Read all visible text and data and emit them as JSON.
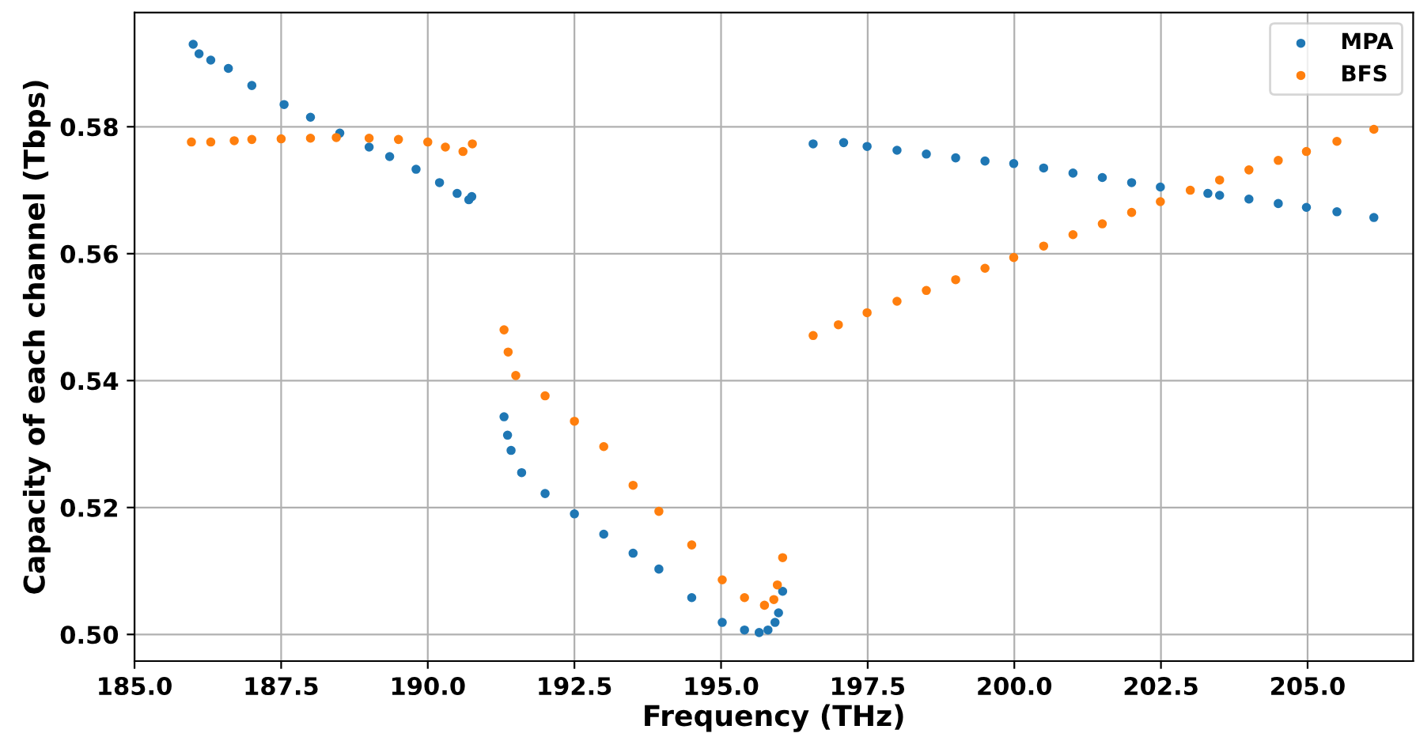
{
  "chart_data": {
    "type": "scatter",
    "xlabel": "Frequency (THz)",
    "ylabel": "Capacity of each channel (Tbps)",
    "xlim": [
      185,
      206.8
    ],
    "ylim": [
      0.4958,
      0.598
    ],
    "xticks": [
      {
        "value": 185,
        "label": "185.0"
      },
      {
        "value": 187.5,
        "label": "187.5"
      },
      {
        "value": 190,
        "label": "190.0"
      },
      {
        "value": 192.5,
        "label": "192.5"
      },
      {
        "value": 195,
        "label": "195.0"
      },
      {
        "value": 197.5,
        "label": "197.5"
      },
      {
        "value": 200,
        "label": "200.0"
      },
      {
        "value": 202.5,
        "label": "202.5"
      },
      {
        "value": 205,
        "label": "205.0"
      }
    ],
    "yticks": [
      {
        "value": 0.5,
        "label": "0.50"
      },
      {
        "value": 0.52,
        "label": "0.52"
      },
      {
        "value": 0.54,
        "label": "0.54"
      },
      {
        "value": 0.56,
        "label": "0.56"
      },
      {
        "value": 0.58,
        "label": "0.58"
      }
    ],
    "grid": true,
    "legend": "top right",
    "marker": "circle",
    "series": [
      {
        "name": "MPA",
        "color": "#1f77b4",
        "x": [
          186.0,
          186.1,
          186.3,
          186.6,
          187.0,
          187.55,
          188.0,
          188.5,
          189.0,
          189.35,
          189.8,
          190.2,
          190.5,
          190.7,
          190.75,
          191.3,
          191.36,
          191.42,
          191.6,
          192.0,
          192.5,
          193.0,
          193.5,
          193.94,
          194.5,
          195.02,
          195.4,
          195.65,
          195.8,
          195.92,
          195.98,
          196.05,
          196.57,
          197.09,
          197.49,
          198.0,
          198.5,
          199.0,
          199.5,
          199.99,
          200.5,
          201.0,
          201.5,
          202.0,
          202.49,
          203.3,
          203.5,
          204.0,
          204.5,
          204.98,
          205.5,
          206.13
        ],
        "values": [
          0.593,
          0.5915,
          0.5905,
          0.5892,
          0.5865,
          0.5835,
          0.5815,
          0.579,
          0.5768,
          0.5753,
          0.5733,
          0.5712,
          0.5695,
          0.5685,
          0.569,
          0.5343,
          0.5314,
          0.529,
          0.5255,
          0.5222,
          0.519,
          0.5158,
          0.5128,
          0.5103,
          0.5058,
          0.5019,
          0.5007,
          0.5003,
          0.5007,
          0.5019,
          0.5034,
          0.5068,
          0.5773,
          0.5775,
          0.5769,
          0.5763,
          0.5757,
          0.5751,
          0.5746,
          0.5742,
          0.5735,
          0.5727,
          0.572,
          0.5712,
          0.5705,
          0.5695,
          0.5692,
          0.5686,
          0.5679,
          0.5673,
          0.5666,
          0.5657
        ]
      },
      {
        "name": "BFS",
        "color": "#ff7f0e",
        "x": [
          185.97,
          186.3,
          186.7,
          187.0,
          187.5,
          188.0,
          188.44,
          189.0,
          189.5,
          190.0,
          190.3,
          190.6,
          190.76,
          191.3,
          191.37,
          191.5,
          192.0,
          192.5,
          193.0,
          193.5,
          193.94,
          194.5,
          195.02,
          195.4,
          195.74,
          195.9,
          195.96,
          196.05,
          196.57,
          197.0,
          197.49,
          198.0,
          198.5,
          199.0,
          199.5,
          199.99,
          200.5,
          201.0,
          201.5,
          202.0,
          202.49,
          203.0,
          203.5,
          204.0,
          204.5,
          204.98,
          205.5,
          206.13
        ],
        "values": [
          0.5776,
          0.5776,
          0.5778,
          0.578,
          0.5781,
          0.5782,
          0.5783,
          0.5782,
          0.578,
          0.5776,
          0.5768,
          0.5761,
          0.5773,
          0.548,
          0.5445,
          0.5408,
          0.5376,
          0.5336,
          0.5296,
          0.5235,
          0.5194,
          0.5141,
          0.5086,
          0.5058,
          0.5046,
          0.5055,
          0.5078,
          0.5121,
          0.5471,
          0.5488,
          0.5507,
          0.5525,
          0.5542,
          0.5559,
          0.5577,
          0.5594,
          0.5612,
          0.563,
          0.5647,
          0.5665,
          0.5682,
          0.57,
          0.5716,
          0.5732,
          0.5747,
          0.5761,
          0.5777,
          0.5796
        ]
      }
    ]
  }
}
